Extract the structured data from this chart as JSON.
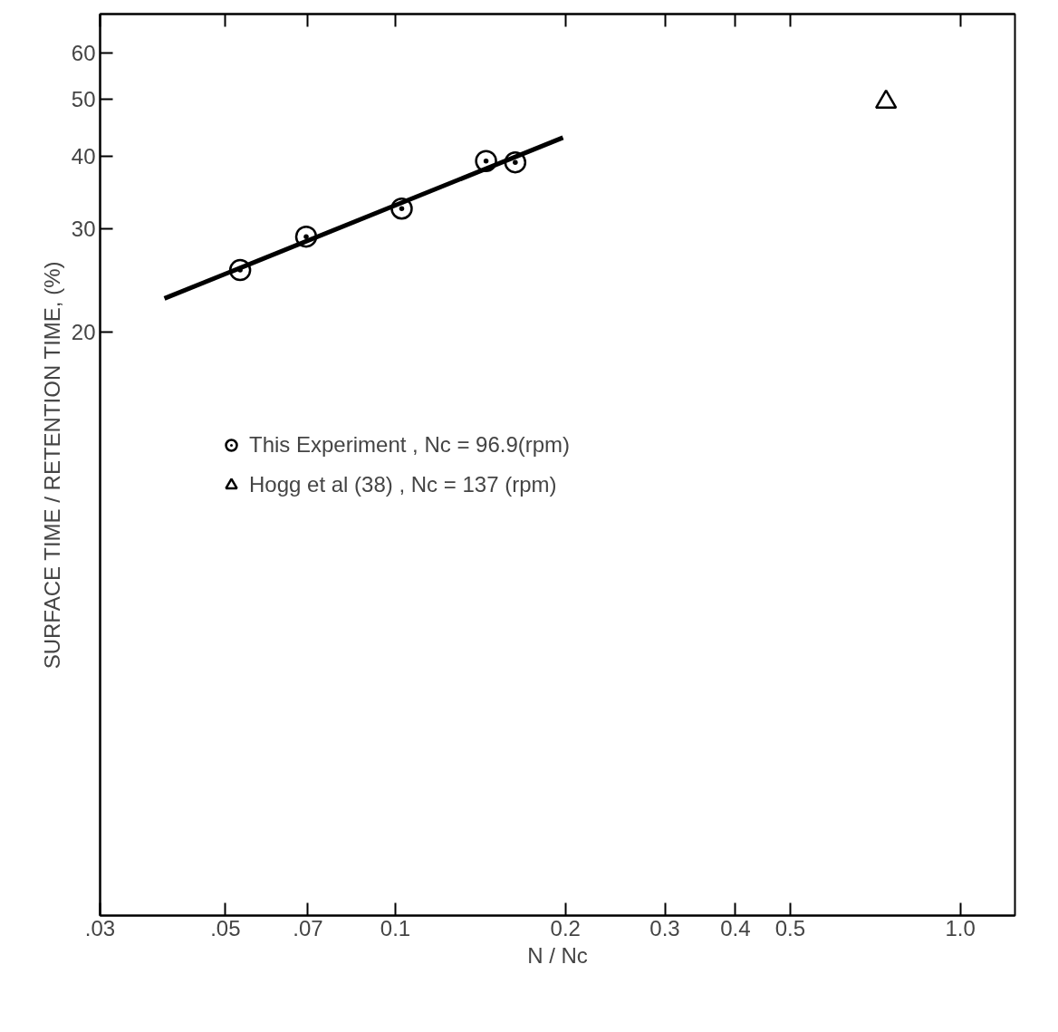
{
  "chart_data": {
    "type": "scatter",
    "xlabel": "N / Nc",
    "ylabel": "SURFACE TIME / RETENTION TIME, (%)",
    "log": "xy",
    "xlim": [
      0.03,
      1.25
    ],
    "ylim": [
      2,
      70
    ],
    "xticks": [
      {
        "value": 0.03,
        "label": ".03"
      },
      {
        "value": 0.05,
        "label": ".05"
      },
      {
        "value": 0.07,
        "label": ".07"
      },
      0.1,
      0.2,
      0.3,
      0.4,
      0.5,
      {
        "value": 1.0,
        "label": "1.0"
      }
    ],
    "yticks": [
      20,
      30,
      40,
      50,
      60
    ],
    "grid": false,
    "legend": "left",
    "series": [
      {
        "name": "This Experiment , Nc = 96.9(rpm)",
        "color": "#000000",
        "marker": "circle",
        "x": [
          0.0531,
          0.0695,
          0.1026,
          0.1447,
          0.163
        ],
        "values": [
          25.5,
          29.1,
          32.5,
          39.2,
          39.0
        ]
      },
      {
        "name": "Hogg et al (38) , Nc = 137 (rpm)",
        "color": "#000000",
        "marker": "triangle",
        "x": [
          0.739
        ],
        "values": [
          49.5
        ]
      },
      {
        "type": "line",
        "color": "#000000",
        "line_style": "solid",
        "x": [
          0.039,
          0.198
        ],
        "values": [
          22.8,
          43.0
        ]
      }
    ]
  }
}
